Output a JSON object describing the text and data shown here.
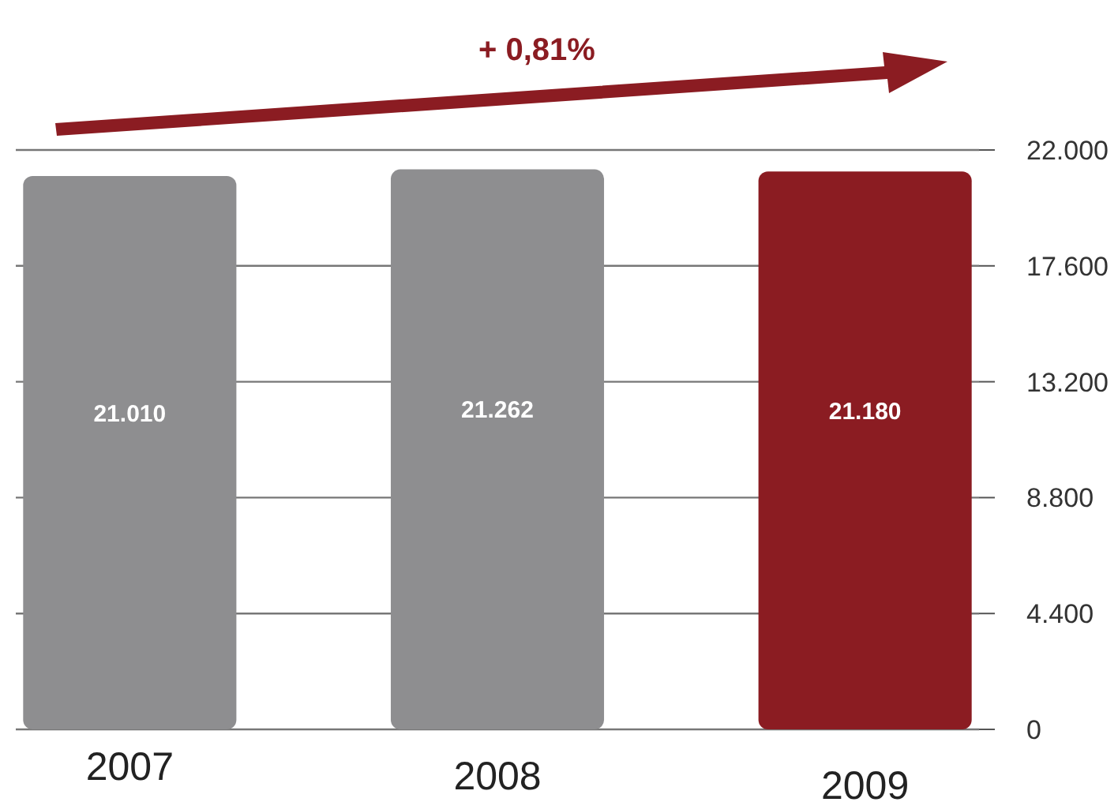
{
  "chart_data": {
    "type": "bar",
    "categories": [
      "2007",
      "2008",
      "2009"
    ],
    "values": [
      21010,
      21262,
      21180
    ],
    "colors": [
      "#8e8e90",
      "#8e8e90",
      "#8b1c22"
    ],
    "value_labels": [
      "21.010",
      "21.262",
      "21.180"
    ],
    "ylim": [
      0,
      22000
    ],
    "yticks": [
      {
        "value": 0,
        "label": "0"
      },
      {
        "value": 4400,
        "label": "4.400"
      },
      {
        "value": 8800,
        "label": "8.800"
      },
      {
        "value": 13200,
        "label": "13.200"
      },
      {
        "value": 17600,
        "label": "17.600"
      },
      {
        "value": 22000,
        "label": "22.000"
      }
    ],
    "grid": "y",
    "annotations": [
      "+ 0,81%"
    ]
  }
}
